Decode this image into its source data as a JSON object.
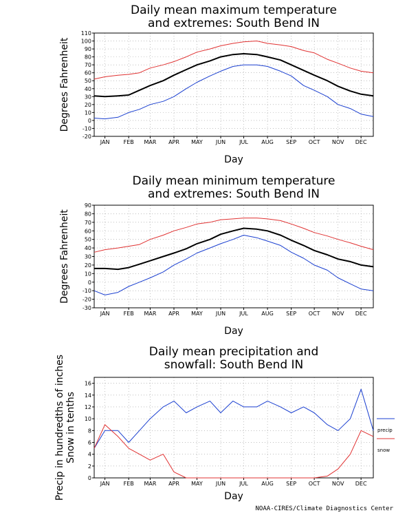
{
  "credit": "NOAA-CIRES/Climate Diagnostics Center",
  "colors": {
    "max": "#e03030",
    "min": "#1a3fd0",
    "mean": "#000000",
    "grid": "#999999"
  },
  "chart_data": [
    {
      "type": "line",
      "title_line1": "Daily mean maximum temperature",
      "title_line2": "and extremes: South Bend IN",
      "xlabel": "Day",
      "ylabel": "Degrees Fahrenheit",
      "months": [
        "JAN",
        "FEB",
        "MAR",
        "APR",
        "MAY",
        "JUN",
        "JUL",
        "AUG",
        "SEP",
        "OCT",
        "NOV",
        "DEC"
      ],
      "ylim": [
        -20,
        110
      ],
      "yticks": [
        -20,
        -10,
        0,
        10,
        20,
        30,
        40,
        50,
        60,
        70,
        80,
        90,
        100,
        110
      ],
      "grid": true,
      "x": [
        1,
        15,
        32,
        46,
        60,
        74,
        91,
        105,
        121,
        135,
        152,
        166,
        182,
        196,
        213,
        227,
        244,
        258,
        274,
        288,
        305,
        319,
        335,
        349,
        365
      ],
      "series": [
        {
          "role": "max",
          "values": [
            52,
            55,
            57,
            58,
            60,
            66,
            70,
            74,
            80,
            86,
            90,
            94,
            97,
            99,
            100,
            97,
            95,
            93,
            88,
            85,
            77,
            72,
            66,
            62,
            60
          ]
        },
        {
          "role": "mean",
          "values": [
            31,
            30,
            31,
            32,
            38,
            44,
            50,
            57,
            64,
            70,
            75,
            80,
            83,
            84,
            83,
            80,
            76,
            70,
            63,
            57,
            50,
            43,
            37,
            33,
            31
          ]
        },
        {
          "role": "min",
          "values": [
            3,
            2,
            4,
            10,
            14,
            20,
            24,
            30,
            40,
            48,
            56,
            62,
            68,
            70,
            70,
            68,
            62,
            56,
            44,
            38,
            30,
            20,
            15,
            8,
            5
          ]
        }
      ]
    },
    {
      "type": "line",
      "title_line1": "Daily mean minimum temperature",
      "title_line2": "and extremes: South Bend IN",
      "xlabel": "Day",
      "ylabel": "Degrees Fahrenheit",
      "months": [
        "JAN",
        "FEB",
        "MAR",
        "APR",
        "MAY",
        "JUN",
        "JUL",
        "AUG",
        "SEP",
        "OCT",
        "NOV",
        "DEC"
      ],
      "ylim": [
        -30,
        90
      ],
      "yticks": [
        -30,
        -20,
        -10,
        0,
        10,
        20,
        30,
        40,
        50,
        60,
        70,
        80,
        90
      ],
      "grid": true,
      "x": [
        1,
        15,
        32,
        46,
        60,
        74,
        91,
        105,
        121,
        135,
        152,
        166,
        182,
        196,
        213,
        227,
        244,
        258,
        274,
        288,
        305,
        319,
        335,
        349,
        365
      ],
      "series": [
        {
          "role": "max",
          "values": [
            35,
            38,
            40,
            42,
            44,
            50,
            55,
            60,
            64,
            68,
            70,
            73,
            74,
            75,
            75,
            74,
            72,
            68,
            63,
            58,
            54,
            50,
            46,
            42,
            38
          ]
        },
        {
          "role": "mean",
          "values": [
            16,
            16,
            15,
            17,
            21,
            25,
            30,
            34,
            39,
            45,
            50,
            56,
            60,
            63,
            62,
            60,
            55,
            49,
            43,
            37,
            32,
            27,
            24,
            20,
            18
          ]
        },
        {
          "role": "min",
          "values": [
            -10,
            -15,
            -12,
            -5,
            0,
            5,
            12,
            20,
            27,
            34,
            40,
            45,
            50,
            55,
            52,
            48,
            43,
            35,
            28,
            20,
            14,
            5,
            -2,
            -8,
            -10
          ]
        }
      ]
    },
    {
      "type": "line",
      "title_line1": "Daily mean precipitation and",
      "title_line2": "snowfall: South Bend IN",
      "xlabel": "Day",
      "ylabel_line1": "Precip in hundredths of inches",
      "ylabel_line2": "Snow in tenths",
      "months": [
        "JAN",
        "FEB",
        "MAR",
        "APR",
        "MAY",
        "JUN",
        "JUL",
        "AUG",
        "SEP",
        "OCT",
        "NOV",
        "DEC"
      ],
      "ylim": [
        0,
        17
      ],
      "yticks": [
        0,
        2,
        4,
        6,
        8,
        10,
        12,
        14,
        16
      ],
      "grid": true,
      "legend": [
        {
          "label": "precip",
          "role": "precip"
        },
        {
          "label": "snow",
          "role": "snow"
        }
      ],
      "x": [
        1,
        15,
        32,
        46,
        60,
        74,
        91,
        105,
        121,
        135,
        152,
        166,
        182,
        196,
        213,
        227,
        244,
        258,
        274,
        288,
        305,
        319,
        335,
        349,
        365
      ],
      "series": [
        {
          "role": "precip",
          "values": [
            5,
            8,
            8,
            6,
            8,
            10,
            12,
            13,
            11,
            12,
            13,
            11,
            13,
            12,
            12,
            13,
            12,
            11,
            12,
            11,
            9,
            8,
            10,
            15,
            8
          ]
        },
        {
          "role": "snow",
          "values": [
            5,
            9,
            7,
            5,
            4,
            3,
            4,
            1,
            0,
            0,
            0,
            0,
            0,
            0,
            0,
            0,
            0,
            0,
            0,
            0,
            0.3,
            1.5,
            4,
            8,
            7
          ]
        }
      ]
    }
  ]
}
